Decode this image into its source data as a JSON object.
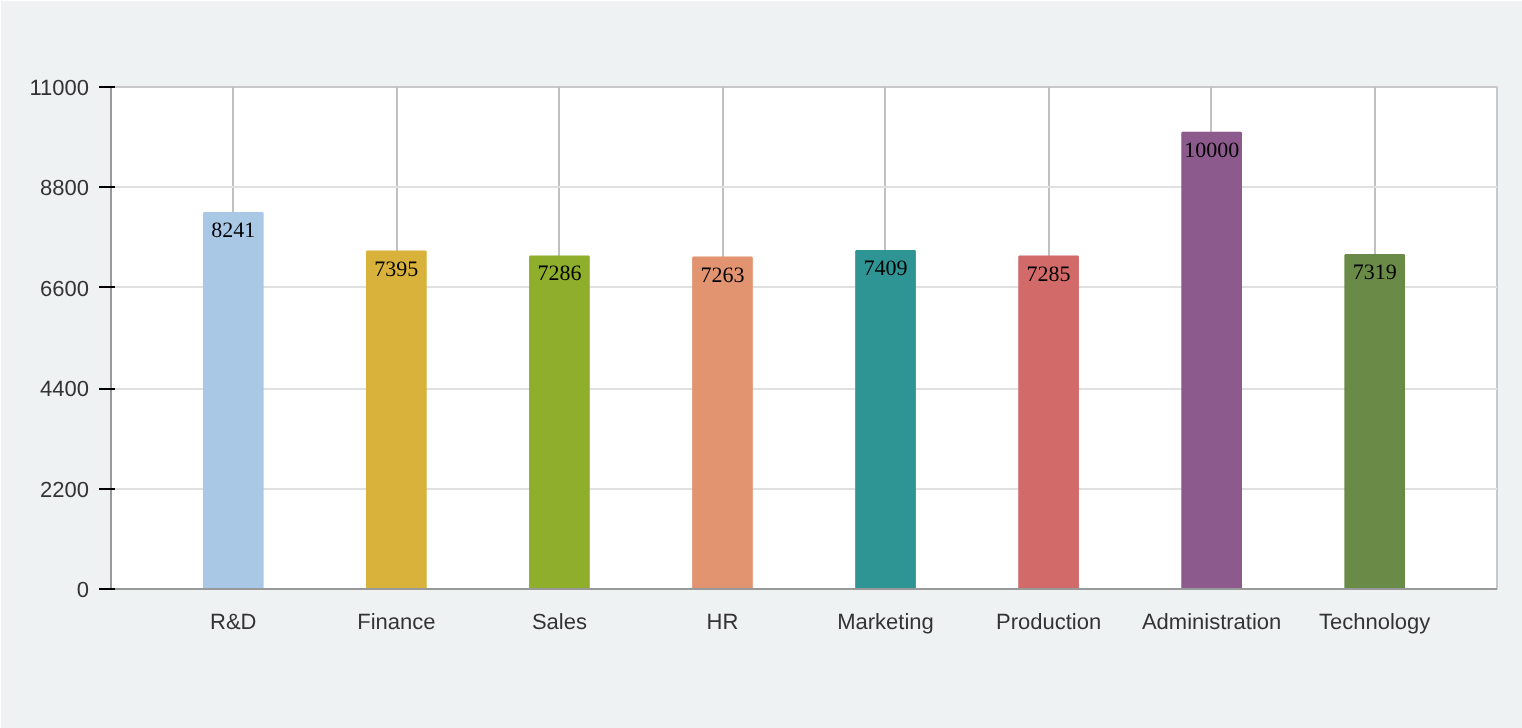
{
  "chart_data": {
    "type": "bar",
    "categories": [
      "R&D",
      "Finance",
      "Sales",
      "HR",
      "Marketing",
      "Production",
      "Administration",
      "Technology"
    ],
    "values": [
      8241,
      7395,
      7286,
      7263,
      7409,
      7285,
      10000,
      7319
    ],
    "colors": [
      "#a9c8e6",
      "#d8b23a",
      "#8eae2c",
      "#e29470",
      "#2e9494",
      "#d26a6a",
      "#8c5a8c",
      "#6a8a48"
    ],
    "ylim": [
      0,
      11000
    ],
    "yticks": [
      0,
      2200,
      4400,
      6600,
      8800,
      11000
    ],
    "grid": true,
    "data_labels": true
  }
}
